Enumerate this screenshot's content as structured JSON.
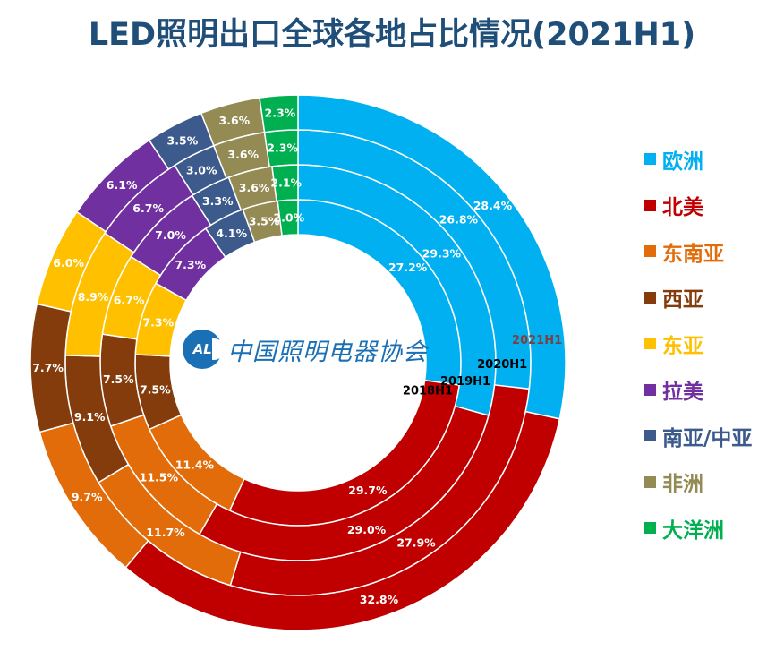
{
  "title": "LED照明出口全球各地占比情况(2021H1)",
  "logo": {
    "mark": "ALI",
    "text": "中国照明电器协会"
  },
  "chart_data": {
    "type": "donut",
    "title": "LED照明出口全球各地占比情况(2021H1)",
    "legend_position": "right",
    "categories": [
      "欧洲",
      "北美",
      "东南亚",
      "西亚",
      "东亚",
      "拉美",
      "南亚/中亚",
      "非洲",
      "大洋洲"
    ],
    "colors": [
      "#00b0f0",
      "#c00000",
      "#e36c0a",
      "#843c0c",
      "#ffc000",
      "#7030a0",
      "#3c5a8c",
      "#948a54",
      "#00b050"
    ],
    "label_colors": [
      "#00b0f0",
      "#c00000",
      "#e36c0a",
      "#843c0c",
      "#ffc000",
      "#7030a0",
      "#3c5a8c",
      "#948a54",
      "#00b050"
    ],
    "series": [
      {
        "name": "2018H1",
        "values": [
          27.2,
          29.7,
          11.4,
          7.5,
          7.3,
          7.3,
          4.1,
          3.5,
          2.0
        ]
      },
      {
        "name": "2019H1",
        "values": [
          29.3,
          29.0,
          11.5,
          7.5,
          6.7,
          7.0,
          3.3,
          3.6,
          2.1
        ]
      },
      {
        "name": "2020H1",
        "values": [
          26.8,
          27.9,
          11.7,
          9.1,
          8.9,
          6.7,
          3.0,
          3.6,
          2.3
        ]
      },
      {
        "name": "2021H1",
        "values": [
          28.4,
          32.8,
          9.7,
          7.7,
          6.0,
          6.1,
          3.5,
          3.6,
          2.3
        ]
      }
    ],
    "data_labels": [
      [
        "27.2%",
        "29.7%",
        "11.4%",
        "7.5%",
        "7.3%",
        "7.3%",
        "4.1%",
        "3.5%",
        "2.0%"
      ],
      [
        "29.3%",
        "29.0%",
        "11.5%",
        "7.5%",
        "6.7%",
        "7.0%",
        "3.3%",
        "3.6%",
        "2.1%"
      ],
      [
        "26.8%",
        "27.9%",
        "11.7%",
        "9.1%",
        "8.9%",
        "6.7%",
        "3.0%",
        "3.6%",
        "2.3%"
      ],
      [
        "28.4%",
        "32.8%",
        "9.7%",
        "7.7%",
        "6.0%",
        "6.1%",
        "3.5%",
        "3.6%",
        "2.3%"
      ]
    ],
    "series_label_colors": [
      "#000000",
      "#000000",
      "#000000",
      "#7f4040"
    ]
  }
}
